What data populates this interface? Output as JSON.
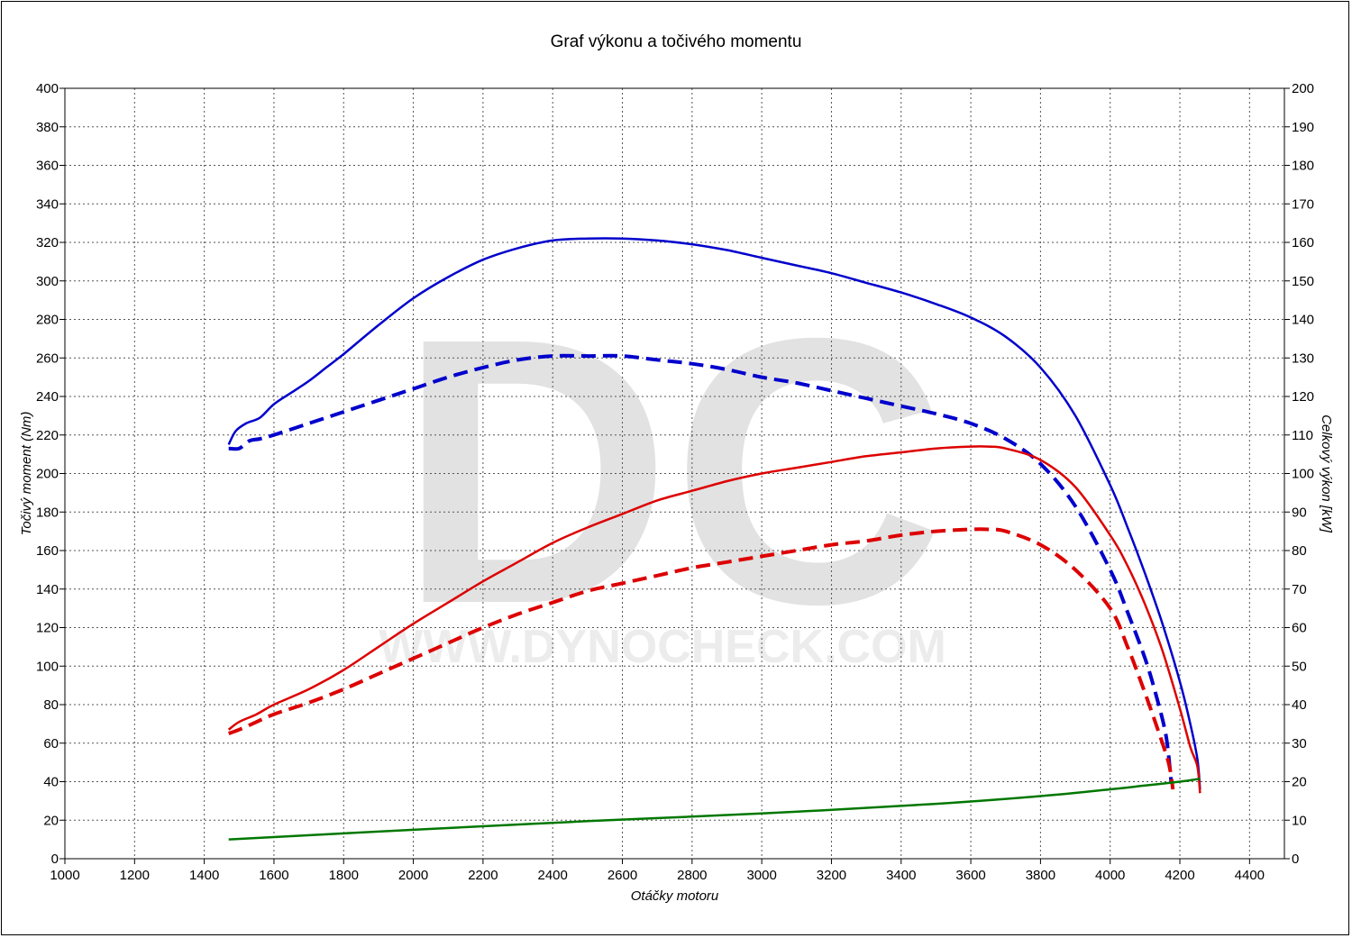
{
  "chart_data": {
    "type": "line",
    "title": "Graf výkonu a točivého momentu",
    "xlabel": "Otáčky motoru",
    "ylabel_left": "Točivý moment (Nm)",
    "ylabel_right": "Celkový výkon [kW]",
    "xlim": [
      1000,
      4500
    ],
    "ylim_left": [
      0,
      400
    ],
    "ylim_right": [
      0,
      200
    ],
    "x_ticks": [
      1000,
      1200,
      1400,
      1600,
      1800,
      2000,
      2200,
      2400,
      2600,
      2800,
      3000,
      3200,
      3400,
      3600,
      3800,
      4000,
      4200,
      4400
    ],
    "y_ticks_left": [
      0,
      20,
      40,
      60,
      80,
      100,
      120,
      140,
      160,
      180,
      200,
      220,
      240,
      260,
      280,
      300,
      320,
      340,
      360,
      380,
      400
    ],
    "y_ticks_right": [
      0,
      10,
      20,
      30,
      40,
      50,
      60,
      70,
      80,
      90,
      100,
      110,
      120,
      130,
      140,
      150,
      160,
      170,
      180,
      190,
      200
    ],
    "grid": true,
    "watermark": {
      "logo": "DC",
      "url": "WWW.DYNOCHECK.COM"
    },
    "series": [
      {
        "axis": "left",
        "color": "#0000cc",
        "style": "solid",
        "x": [
          1470,
          1490,
          1520,
          1560,
          1600,
          1650,
          1700,
          1750,
          1800,
          1900,
          2000,
          2100,
          2200,
          2300,
          2400,
          2500,
          2600,
          2700,
          2800,
          2900,
          3000,
          3100,
          3200,
          3300,
          3400,
          3500,
          3600,
          3700,
          3800,
          3900,
          4000,
          4050,
          4100,
          4150,
          4200,
          4230,
          4250,
          4258
        ],
        "y": [
          215,
          222,
          226,
          229,
          236,
          242,
          248,
          255,
          262,
          277,
          291,
          302,
          311,
          317,
          321,
          322,
          322,
          321,
          319,
          316,
          312,
          308,
          304,
          299,
          294,
          288,
          281,
          271,
          255,
          230,
          194,
          172,
          148,
          122,
          92,
          70,
          52,
          36
        ]
      },
      {
        "axis": "left",
        "color": "#0000cc",
        "style": "dashed",
        "x": [
          1470,
          1500,
          1530,
          1560,
          1600,
          1700,
          1800,
          1900,
          2000,
          2100,
          2200,
          2300,
          2400,
          2500,
          2600,
          2700,
          2800,
          2900,
          3000,
          3100,
          3200,
          3300,
          3400,
          3500,
          3600,
          3700,
          3800,
          3900,
          4000,
          4050,
          4100,
          4130,
          4160,
          4175
        ],
        "y": [
          213,
          213,
          217,
          218,
          220,
          226,
          232,
          238,
          244,
          250,
          255,
          259,
          261,
          261,
          261,
          259,
          257,
          254,
          250,
          247,
          243,
          239,
          235,
          231,
          226,
          218,
          205,
          183,
          150,
          128,
          104,
          86,
          64,
          40
        ]
      },
      {
        "axis": "right",
        "color": "#dd0000",
        "style": "solid",
        "x": [
          1470,
          1500,
          1550,
          1600,
          1700,
          1800,
          1900,
          2000,
          2100,
          2200,
          2300,
          2400,
          2500,
          2600,
          2700,
          2800,
          2900,
          3000,
          3100,
          3200,
          3300,
          3400,
          3500,
          3600,
          3650,
          3700,
          3800,
          3900,
          4000,
          4050,
          4100,
          4150,
          4200,
          4230,
          4250,
          4258
        ],
        "y": [
          33.5,
          35.5,
          37.5,
          40,
          44,
          49,
          55,
          61,
          66.5,
          72,
          77,
          82,
          86,
          89.5,
          93,
          95.5,
          98,
          100,
          101.5,
          103,
          104.5,
          105.5,
          106.5,
          107,
          107,
          106.5,
          103.5,
          96.5,
          84,
          76,
          66,
          54,
          39,
          29,
          24,
          17
        ]
      },
      {
        "axis": "right",
        "color": "#dd0000",
        "style": "dashed",
        "x": [
          1470,
          1500,
          1550,
          1600,
          1700,
          1800,
          1900,
          2000,
          2100,
          2200,
          2300,
          2400,
          2500,
          2600,
          2700,
          2800,
          2900,
          3000,
          3100,
          3200,
          3300,
          3400,
          3500,
          3600,
          3650,
          3700,
          3800,
          3900,
          4000,
          4050,
          4100,
          4150,
          4170,
          4180
        ],
        "y": [
          32.5,
          33.5,
          35.5,
          37.5,
          40.5,
          44,
          48,
          52,
          56,
          60,
          63.5,
          66.5,
          69.5,
          71.5,
          73.5,
          75.5,
          77,
          78.5,
          80,
          81.5,
          82.5,
          84,
          85,
          85.5,
          85.5,
          85,
          81.5,
          75,
          65,
          55,
          43,
          30,
          24,
          18
        ]
      },
      {
        "axis": "left",
        "color": "#007700",
        "style": "solid",
        "x": [
          1470,
          2000,
          2500,
          3000,
          3500,
          3800,
          4000,
          4100,
          4200,
          4258
        ],
        "y": [
          10,
          15,
          19.5,
          23.5,
          28.5,
          32.5,
          36,
          38,
          40,
          41.5
        ]
      }
    ]
  }
}
